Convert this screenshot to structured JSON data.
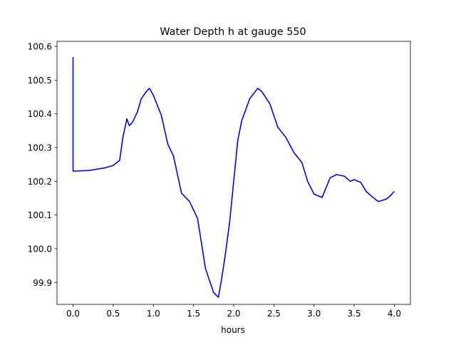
{
  "chart_data": {
    "type": "line",
    "title": "Water Depth h at gauge 550",
    "xlabel": "hours",
    "ylabel": "",
    "xlim": [
      -0.2,
      4.2
    ],
    "ylim": [
      99.835,
      100.615
    ],
    "xticks": [
      0.0,
      0.5,
      1.0,
      1.5,
      2.0,
      2.5,
      3.0,
      3.5,
      4.0
    ],
    "xtick_labels": [
      "0.0",
      "0.5",
      "1.0",
      "1.5",
      "2.0",
      "2.5",
      "3.0",
      "3.5",
      "4.0"
    ],
    "yticks": [
      99.9,
      100.0,
      100.1,
      100.2,
      100.3,
      100.4,
      100.5,
      100.6
    ],
    "ytick_labels": [
      "99.9",
      "100.0",
      "100.1",
      "100.2",
      "100.3",
      "100.4",
      "100.5",
      "100.6"
    ],
    "grid": false,
    "series": [
      {
        "color": "#0000ff",
        "x": [
          0.0,
          0.0,
          0.2,
          0.4,
          0.5,
          0.58,
          0.62,
          0.67,
          0.7,
          0.74,
          0.8,
          0.85,
          0.9,
          0.95,
          1.0,
          1.1,
          1.18,
          1.25,
          1.35,
          1.45,
          1.55,
          1.65,
          1.75,
          1.81,
          1.85,
          1.9,
          1.95,
          2.0,
          2.05,
          2.1,
          2.2,
          2.3,
          2.35,
          2.45,
          2.55,
          2.65,
          2.75,
          2.85,
          2.92,
          3.0,
          3.1,
          3.2,
          3.28,
          3.38,
          3.45,
          3.5,
          3.58,
          3.65,
          3.72,
          3.8,
          3.9,
          3.95,
          4.0
        ],
        "values": [
          100.568,
          100.23,
          100.232,
          100.24,
          100.247,
          100.262,
          100.33,
          100.385,
          100.365,
          100.375,
          100.405,
          100.445,
          100.462,
          100.476,
          100.455,
          100.395,
          100.31,
          100.275,
          100.165,
          100.14,
          100.09,
          99.94,
          99.87,
          99.856,
          99.91,
          99.99,
          100.08,
          100.2,
          100.32,
          100.38,
          100.445,
          100.476,
          100.466,
          100.43,
          100.36,
          100.33,
          100.285,
          100.255,
          100.2,
          100.162,
          100.152,
          100.21,
          100.22,
          100.215,
          100.2,
          100.205,
          100.197,
          100.17,
          100.155,
          100.14,
          100.147,
          100.157,
          100.17
        ]
      }
    ]
  }
}
